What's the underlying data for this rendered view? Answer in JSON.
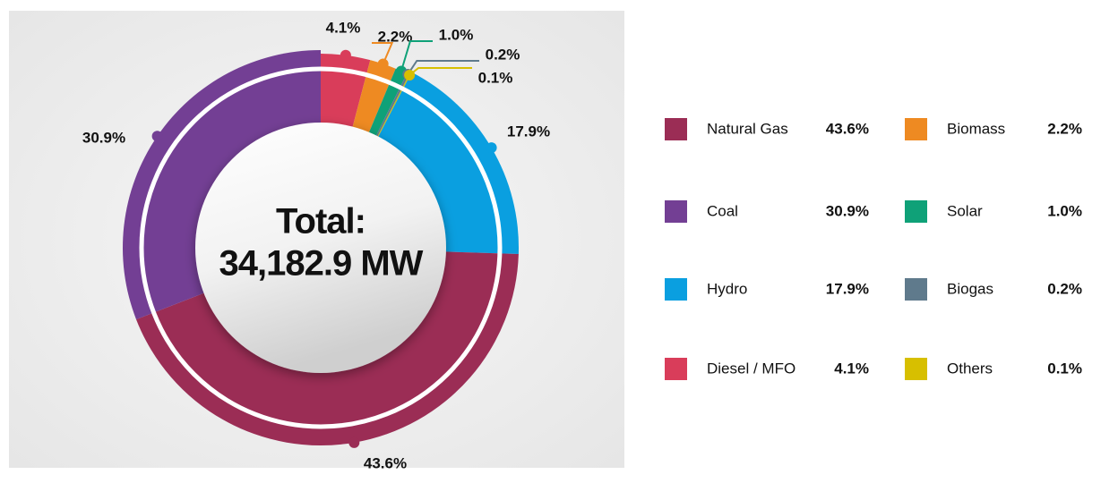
{
  "chart_data": {
    "type": "donut",
    "center_title": "Total:",
    "center_value": "34,182.9 MW",
    "categories": [
      "Diesel / MFO",
      "Biomass",
      "Solar",
      "Biogas",
      "Others",
      "Hydro",
      "Natural Gas",
      "Coal"
    ],
    "values": [
      4.1,
      2.2,
      1.0,
      0.2,
      0.1,
      17.9,
      43.6,
      30.9
    ],
    "value_labels": [
      "4.1%",
      "2.2%",
      "1.0%",
      "0.2%",
      "0.1%",
      "17.9%",
      "43.6%",
      "30.9%"
    ],
    "colors": [
      "#d93d5a",
      "#ee8a22",
      "#0fa178",
      "#5f7a8c",
      "#d7bf00",
      "#0a9fe0",
      "#9b2d55",
      "#733f94"
    ],
    "legend": true
  }
}
